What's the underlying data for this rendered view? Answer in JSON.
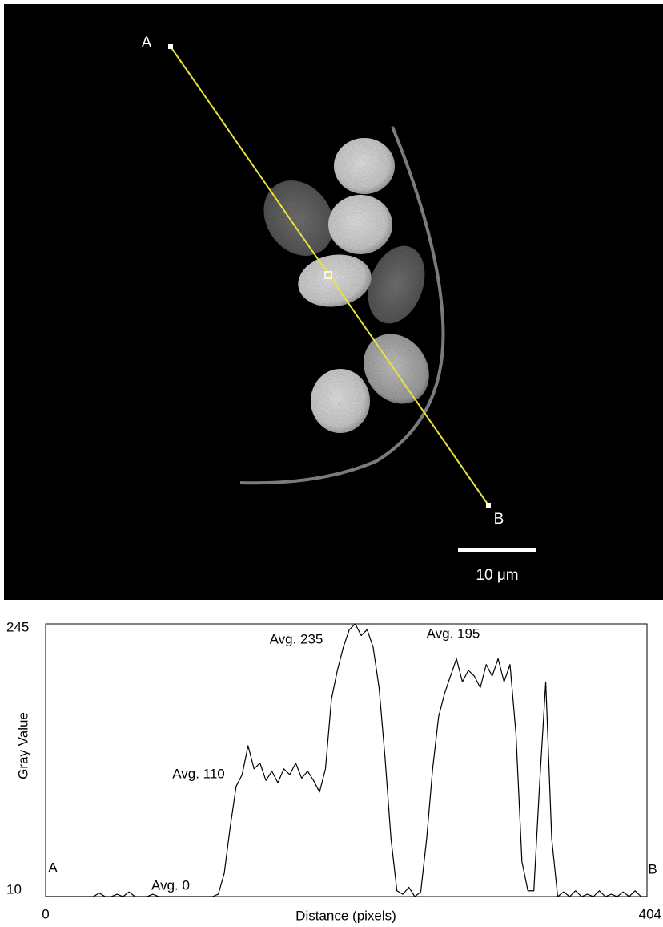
{
  "image": {
    "point_a": "A",
    "point_b": "B",
    "scale_bar": "10 μm"
  },
  "chart_data": {
    "type": "line",
    "x_label": "Distance (pixels)",
    "y_label": "Gray Value",
    "annotations": [
      "Avg. 235",
      "Avg. 195",
      "Avg. 110",
      "Avg. 0",
      "A",
      "B"
    ],
    "xlim": [
      0,
      404
    ],
    "ylim": [
      10,
      245
    ],
    "xticks": [
      0,
      404
    ],
    "yticks": [
      10,
      245
    ],
    "x": [
      0,
      4,
      8,
      12,
      16,
      20,
      24,
      28,
      32,
      36,
      40,
      44,
      48,
      52,
      56,
      60,
      64,
      68,
      72,
      76,
      80,
      84,
      88,
      92,
      96,
      100,
      104,
      108,
      112,
      116,
      120,
      124,
      128,
      132,
      136,
      140,
      144,
      148,
      152,
      156,
      160,
      164,
      168,
      172,
      176,
      180,
      184,
      188,
      192,
      196,
      200,
      204,
      208,
      212,
      216,
      220,
      224,
      228,
      232,
      236,
      240,
      244,
      248,
      252,
      256,
      260,
      264,
      268,
      272,
      276,
      280,
      284,
      288,
      292,
      296,
      300,
      304,
      308,
      312,
      316,
      320,
      324,
      328,
      332,
      336,
      340,
      344,
      348,
      352,
      356,
      360,
      364,
      368,
      372,
      376,
      380,
      384,
      388,
      392,
      396,
      400,
      404
    ],
    "series": [
      {
        "color": "#000000",
        "values": [
          10,
          10,
          10,
          10,
          10,
          10,
          10,
          10,
          10,
          13,
          10,
          10,
          12,
          10,
          14,
          10,
          10,
          10,
          12,
          10,
          10,
          10,
          10,
          10,
          10,
          10,
          10,
          10,
          10,
          12,
          30,
          70,
          105,
          115,
          140,
          120,
          125,
          110,
          118,
          108,
          120,
          115,
          125,
          112,
          118,
          110,
          100,
          120,
          180,
          205,
          225,
          240,
          245,
          235,
          240,
          225,
          190,
          130,
          60,
          15,
          12,
          18,
          10,
          14,
          60,
          120,
          165,
          185,
          200,
          215,
          195,
          205,
          200,
          190,
          210,
          200,
          215,
          195,
          210,
          150,
          40,
          15,
          15,
          110,
          195,
          60,
          10,
          14,
          10,
          15,
          10,
          12,
          10,
          15,
          10,
          12,
          10,
          14,
          10,
          15,
          10,
          10
        ]
      }
    ]
  }
}
